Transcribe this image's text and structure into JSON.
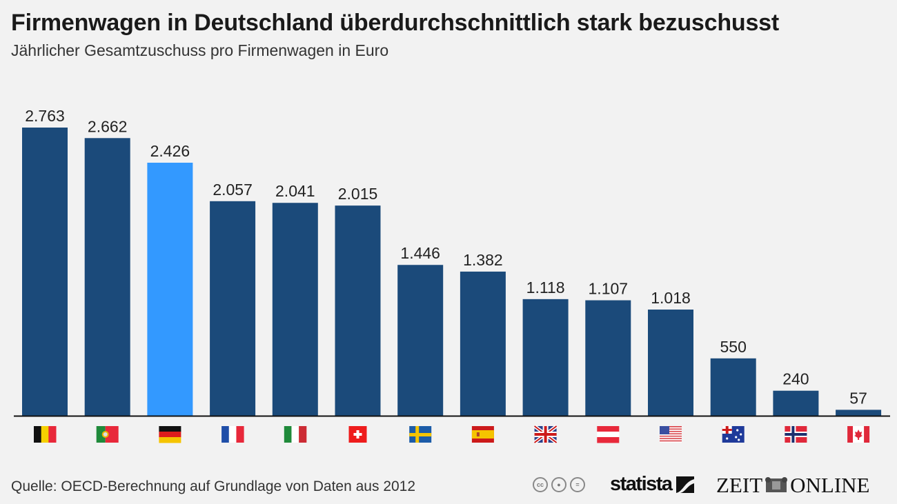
{
  "chart_data": {
    "type": "bar",
    "title": "Firmenwagen in Deutschland überdurchschnittlich stark bezuschusst",
    "subtitle": "Jährlicher Gesamtzuschuss pro Firmenwagen in Euro",
    "xlabel": "",
    "ylabel": "",
    "ylim": [
      0,
      2763
    ],
    "grid": false,
    "categories": [
      "Belgium",
      "Portugal",
      "Germany",
      "France",
      "Italy",
      "Switzerland",
      "Sweden",
      "Spain",
      "United Kingdom",
      "Austria",
      "United States",
      "Australia",
      "Norway",
      "Canada"
    ],
    "values": [
      2763,
      2662,
      2426,
      2057,
      2041,
      2015,
      1446,
      1382,
      1118,
      1107,
      1018,
      550,
      240,
      57
    ],
    "value_labels": [
      "2.763",
      "2.662",
      "2.426",
      "2.057",
      "2.041",
      "2.015",
      "1.446",
      "1.382",
      "1.118",
      "1.107",
      "1.018",
      "550",
      "240",
      "57"
    ],
    "flags": [
      "flag-belgium-icon",
      "flag-portugal-icon",
      "flag-germany-icon",
      "flag-france-icon",
      "flag-italy-icon",
      "flag-switzerland-icon",
      "flag-sweden-icon",
      "flag-spain-icon",
      "flag-uk-icon",
      "flag-austria-icon",
      "flag-usa-icon",
      "flag-australia-icon",
      "flag-norway-icon",
      "flag-canada-icon"
    ],
    "highlight_index": 2,
    "colors": {
      "bar": "#1b4a7a",
      "highlight": "#3399ff",
      "axis": "#111111",
      "label": "#222222"
    }
  },
  "footer": {
    "source": "Quelle: OECD-Berechnung auf Grundlage von Daten aus 2012",
    "license_icons": [
      "cc-icon",
      "by-icon",
      "nd-icon"
    ],
    "statista_logo": "statista",
    "zeit_logo": "ZEIT ONLINE",
    "zeit_logo_left": "ZEIT",
    "zeit_logo_right": "ONLINE"
  }
}
